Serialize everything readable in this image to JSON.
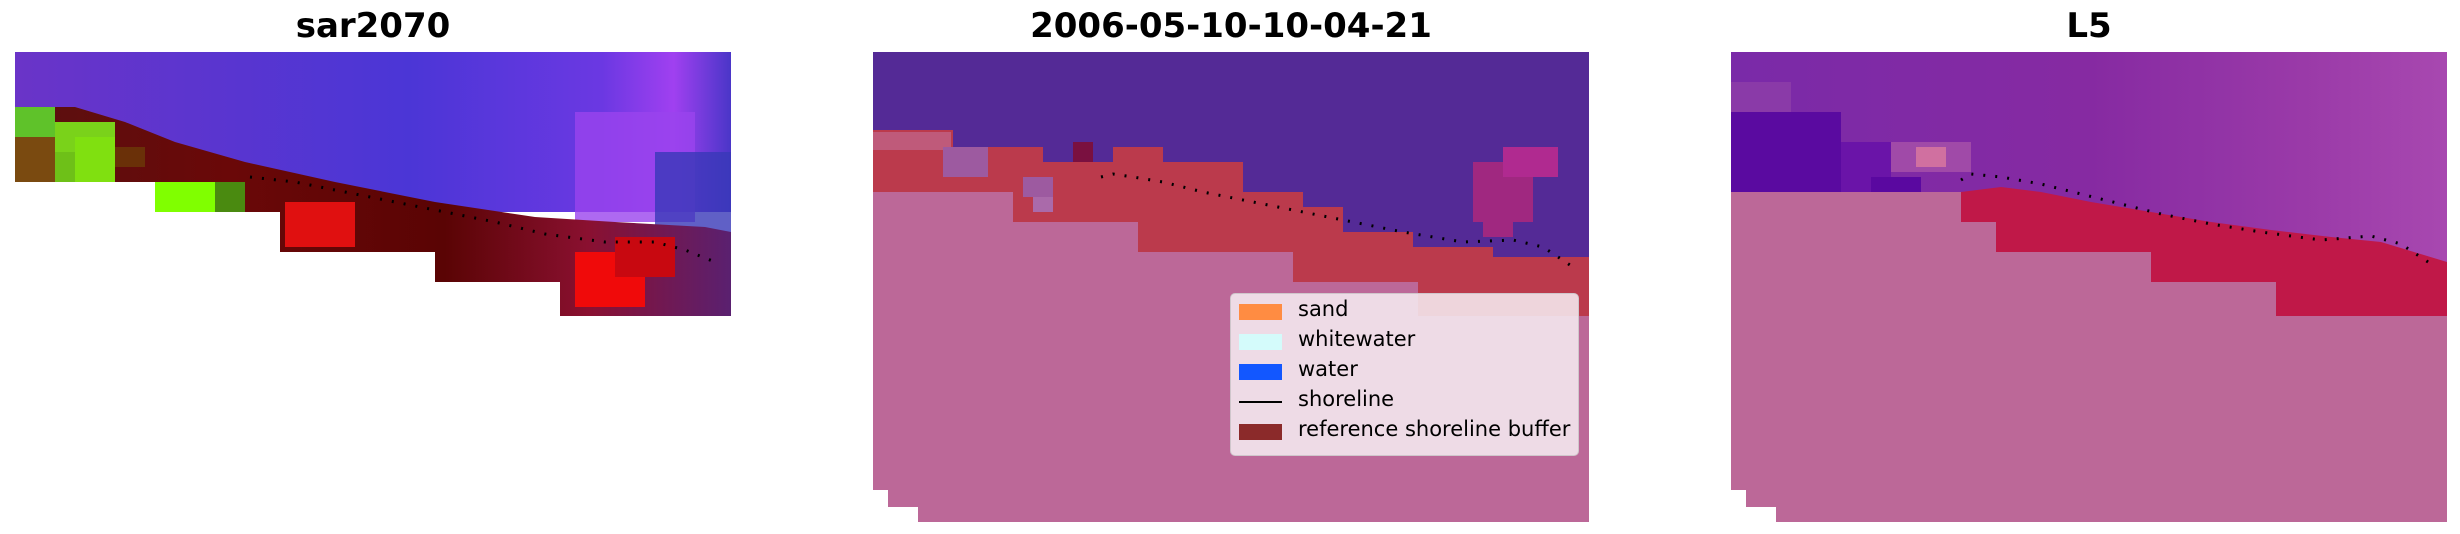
{
  "panels": [
    {
      "title": "sar2070",
      "image": "false-color satellite image of coastline (green land, red sand, blue water) with dotted shoreline"
    },
    {
      "title": "2006-05-10-10-04-21",
      "image": "classified coastline overlay with sand, water and reference shoreline buffer regions and dotted shoreline"
    },
    {
      "title": "L5",
      "image": "satellite image of coastline with reference shoreline buffer overlay and dotted shoreline"
    }
  ],
  "legend": {
    "items": [
      {
        "label": "sand",
        "color": "#ff8c42",
        "kind": "patch"
      },
      {
        "label": "whitewater",
        "color": "#d4fbfb",
        "kind": "patch"
      },
      {
        "label": "water",
        "color": "#1257ff",
        "kind": "patch"
      },
      {
        "label": "shoreline",
        "color": "#000000",
        "kind": "line"
      },
      {
        "label": "reference shoreline buffer",
        "color": "#8b2a2a",
        "kind": "patch"
      }
    ]
  }
}
